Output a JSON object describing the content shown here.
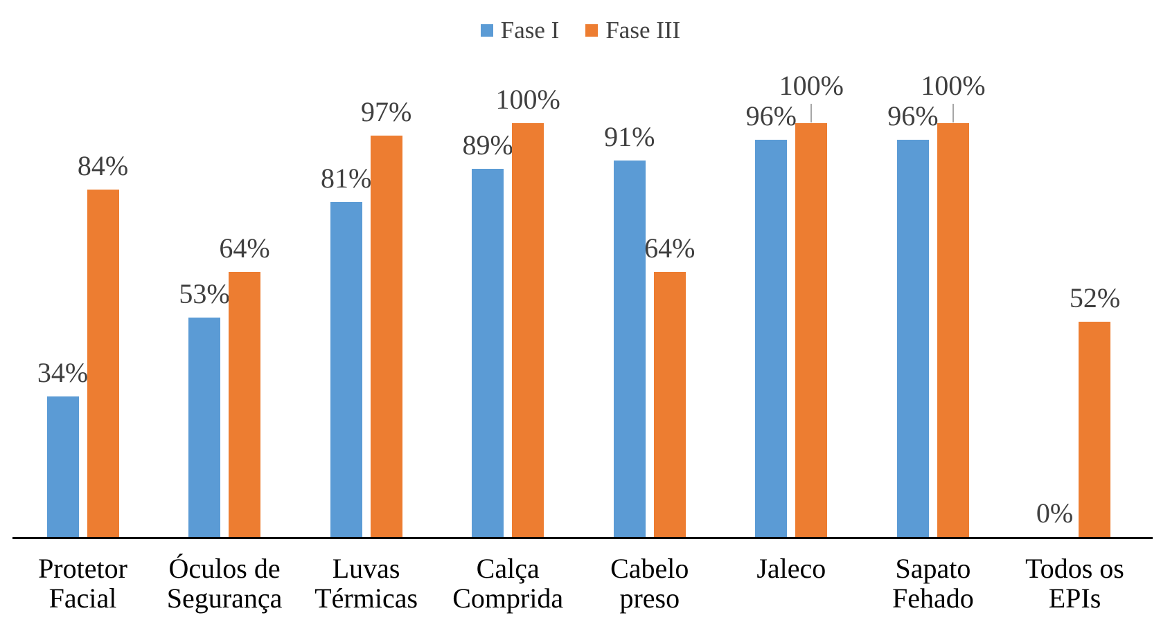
{
  "legend": {
    "items": [
      {
        "label": "Fase I",
        "color": "#5B9BD5"
      },
      {
        "label": "Fase III",
        "color": "#ED7D31"
      }
    ]
  },
  "chart_data": {
    "type": "bar",
    "title": "",
    "categories": [
      "Protetor Facial",
      "Óculos de Segurança",
      "Luvas Térmicas",
      "Calça Comprida",
      "Cabelo preso",
      "Jaleco",
      "Sapato Fehado",
      "Todos os EPIs"
    ],
    "category_label_lines": [
      [
        "Protetor",
        "Facial"
      ],
      [
        "Óculos de",
        "Segurança"
      ],
      [
        "Luvas",
        "Térmicas"
      ],
      [
        "Calça",
        "Comprida"
      ],
      [
        "Cabelo preso"
      ],
      [
        "Jaleco"
      ],
      [
        "Sapato",
        "Fehado"
      ],
      [
        "Todos os",
        "EPIs"
      ]
    ],
    "series": [
      {
        "name": "Fase I",
        "color": "#5B9BD5",
        "values": [
          34,
          53,
          81,
          89,
          91,
          96,
          96,
          0
        ],
        "labels": [
          "34%",
          "53%",
          "81%",
          "89%",
          "91%",
          "96%",
          "96%",
          "0%"
        ],
        "leader_line_indices": []
      },
      {
        "name": "Fase III",
        "color": "#ED7D31",
        "values": [
          84,
          64,
          97,
          100,
          64,
          100,
          100,
          52
        ],
        "labels": [
          "84%",
          "64%",
          "97%",
          "100%",
          "64%",
          "100%",
          "100%",
          "52%"
        ],
        "leader_line_indices": [
          5,
          6
        ]
      }
    ],
    "value_suffix": "%",
    "ylim": [
      0,
      100
    ],
    "xlabel": "",
    "ylabel": "",
    "grid": false,
    "y_axis_visible": false,
    "legend_position": "top",
    "colors": {
      "fase_i": "#5B9BD5",
      "fase_iii": "#ED7D31",
      "data_label": "#3f3f3f",
      "category_label": "#000000",
      "axis_line": "#000000",
      "leader_line": "#a6a6a6"
    }
  }
}
